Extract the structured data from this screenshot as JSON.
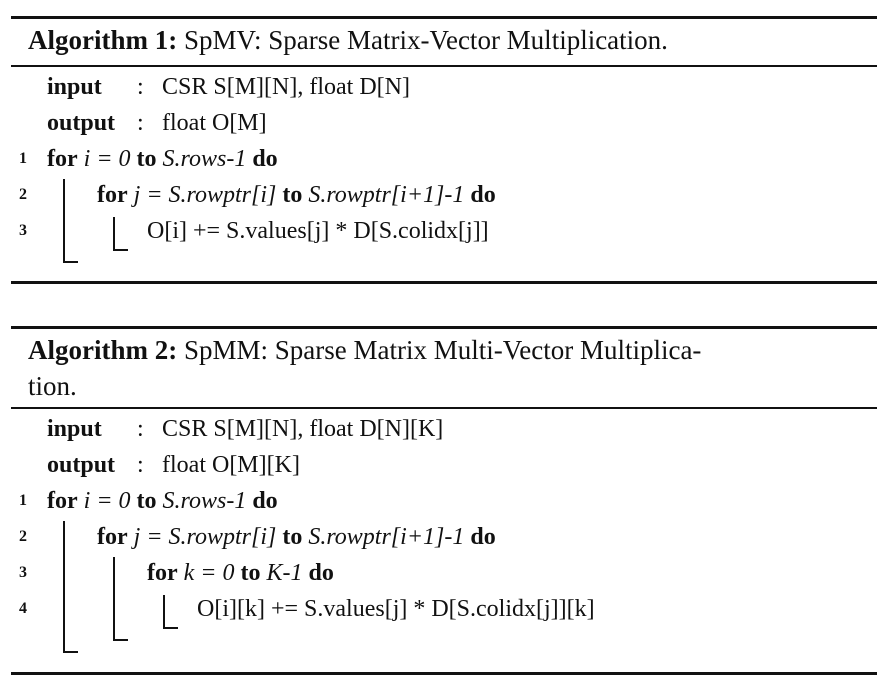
{
  "algorithm1": {
    "label": "Algorithm 1:",
    "title": "SpMV: Sparse Matrix-Vector Multiplication.",
    "input_kw": "input",
    "input_val": "CSR S[M][N], float D[N]",
    "output_kw": "output",
    "output_val": "float O[M]",
    "lines": [
      {
        "num": "1",
        "kw1": "for",
        "expr1": "i = 0",
        "kw2": "to",
        "expr2": "S.rows-1",
        "kw3": "do"
      },
      {
        "num": "2",
        "kw1": "for",
        "expr1": "j = S.rowptr[i]",
        "kw2": "to",
        "expr2": "S.rowptr[i+1]-1",
        "kw3": "do"
      },
      {
        "num": "3",
        "text": "O[i] += S.values[j] * D[S.colidx[j]]"
      }
    ]
  },
  "algorithm2": {
    "label": "Algorithm 2:",
    "title": "SpMM: Sparse Matrix Multi-Vector Multiplica-",
    "title_cont": "tion.",
    "input_kw": "input",
    "input_val": "CSR S[M][N], float D[N][K]",
    "output_kw": "output",
    "output_val": "float O[M][K]",
    "lines": [
      {
        "num": "1",
        "kw1": "for",
        "expr1": "i = 0",
        "kw2": "to",
        "expr2": "S.rows-1",
        "kw3": "do"
      },
      {
        "num": "2",
        "kw1": "for",
        "expr1": "j = S.rowptr[i]",
        "kw2": "to",
        "expr2": "S.rowptr[i+1]-1",
        "kw3": "do"
      },
      {
        "num": "3",
        "kw1": "for",
        "expr1": "k = 0",
        "kw2": "to",
        "expr2": "K-1",
        "kw3": "do"
      },
      {
        "num": "4",
        "text": "O[i][k] += S.values[j] * D[S.colidx[j]][k]"
      }
    ]
  },
  "colon": ":"
}
